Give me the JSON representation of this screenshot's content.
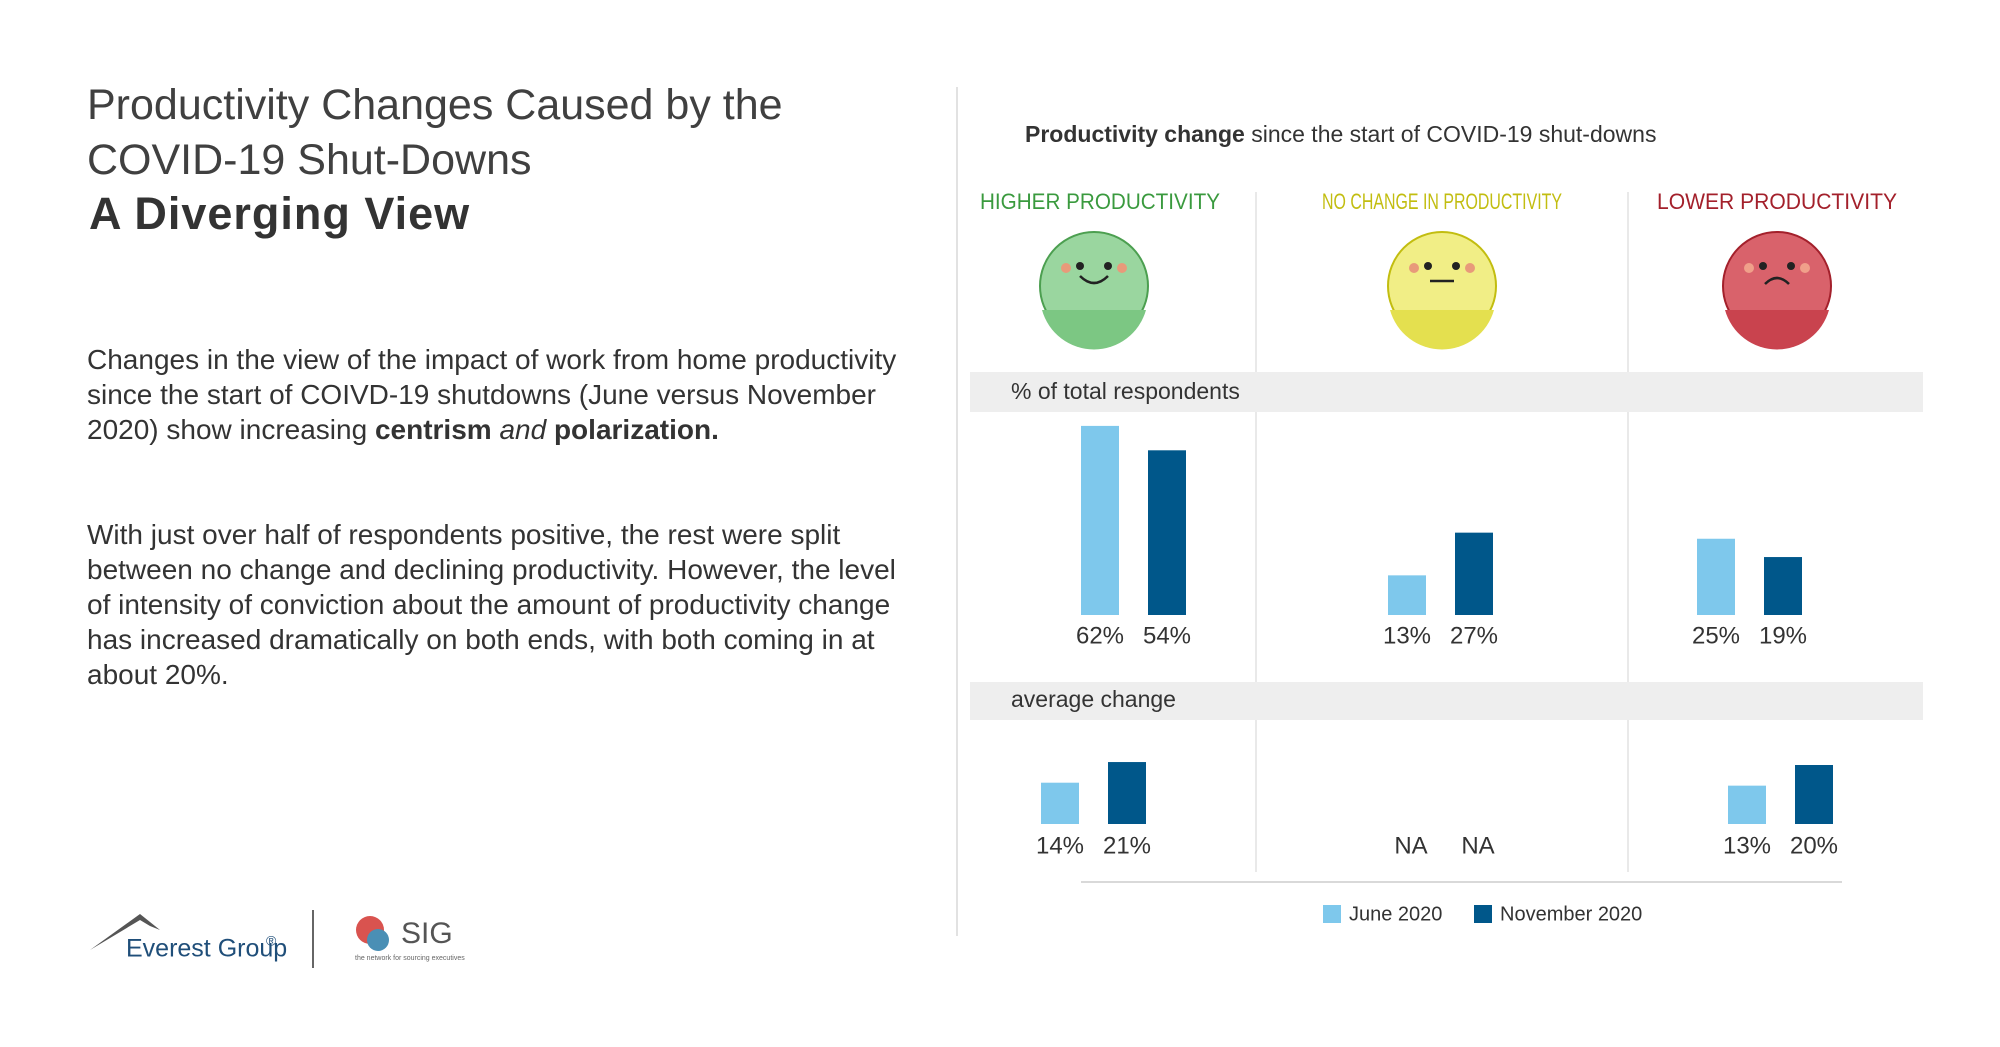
{
  "header": {
    "title_line1": "Productivity Changes Caused by the",
    "title_line2": "COVID-19 Shut-Downs",
    "subtitle": "A Diverging View"
  },
  "body": {
    "paragraph1": {
      "text": "Changes in the view of the impact of work from home productivity since the start of COIVD-19 shutdowns (June versus November 2020) show increasing",
      "bold1": "centrism",
      "italic": "and",
      "bold2": "polarization."
    },
    "paragraph2": "With just over half of respondents positive, the rest were split between no change and declining productivity. However, the level of intensity of conviction about the amount of productivity change has increased dramatically on both ends, with both coming in at about 20%."
  },
  "chart_header": {
    "title_bold": "Productivity change",
    "title_rest": "since the start of COVID-19 shut-downs"
  },
  "logos": {
    "everest": "Everest Group",
    "registered": "®",
    "sig": "SIG",
    "sig_tagline": "the network for sourcing executives"
  },
  "chart_data": [
    {
      "type": "bar",
      "title": "% of total respondents",
      "categories": [
        "HIGHER PRODUCTIVITY",
        "NO CHANGE IN PRODUCTIVITY",
        "LOWER PRODUCTIVITY"
      ],
      "category_colors": [
        "#3a9a3e",
        "#c2bd10",
        "#a3202b"
      ],
      "series": [
        {
          "name": "June 2020",
          "color": "#7ec8ec",
          "values": [
            62,
            13,
            25
          ],
          "value_labels": [
            "62%",
            "13%",
            "25%"
          ]
        },
        {
          "name": "November 2020",
          "color": "#00578a",
          "values": [
            54,
            27,
            19
          ],
          "value_labels": [
            "54%",
            "27%",
            "19%"
          ]
        }
      ]
    },
    {
      "type": "bar",
      "title": "average change",
      "series": [
        {
          "color": "#7ec8ec",
          "values": [
            14,
            null,
            13
          ],
          "value_labels": [
            "14%",
            "NA",
            "13%"
          ]
        },
        {
          "color": "#00578a",
          "values": [
            21,
            null,
            20
          ],
          "value_labels": [
            "21%",
            "NA",
            "20%"
          ]
        }
      ]
    }
  ]
}
